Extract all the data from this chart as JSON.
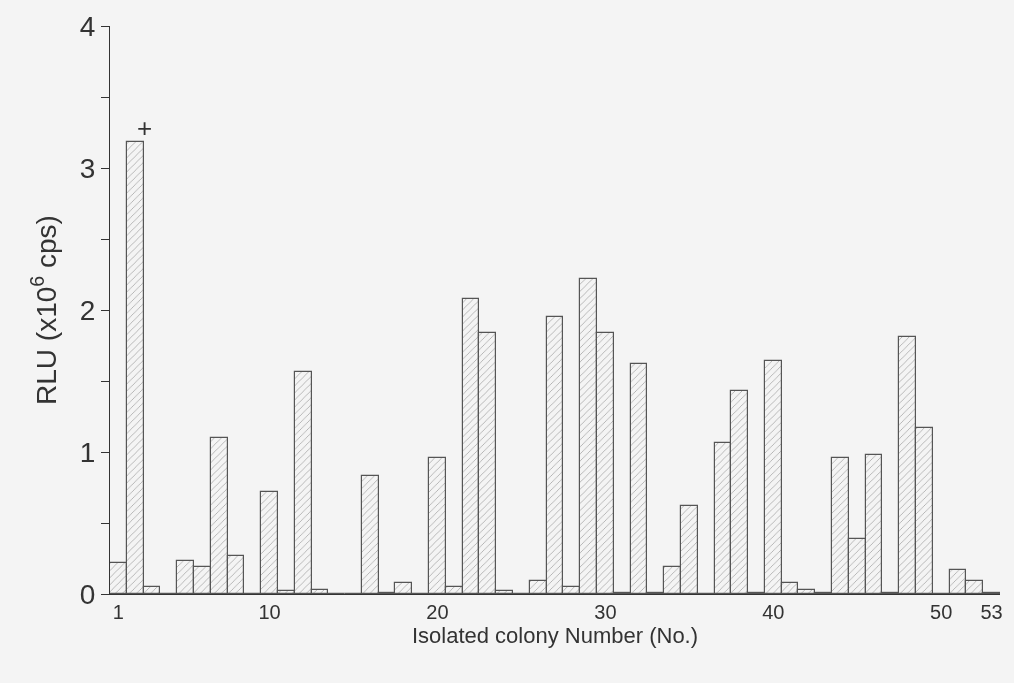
{
  "chart_data": {
    "type": "bar",
    "xlabel": "Isolated colony Number (No.)",
    "ylabel": "RLU (x10$^{6}$ cps)",
    "categories": [
      "1",
      null,
      null,
      null,
      null,
      null,
      null,
      null,
      null,
      "10",
      null,
      null,
      null,
      null,
      null,
      null,
      null,
      null,
      null,
      "20",
      null,
      null,
      null,
      null,
      null,
      null,
      null,
      null,
      null,
      "30",
      null,
      null,
      null,
      null,
      null,
      null,
      null,
      null,
      null,
      "40",
      null,
      null,
      null,
      null,
      null,
      null,
      null,
      null,
      null,
      "50",
      null,
      null,
      "53"
    ],
    "values": [
      0.22,
      3.18,
      0.05,
      0,
      0.23,
      0.19,
      1.1,
      0.27,
      0,
      0.72,
      0.02,
      1.56,
      0.03,
      0,
      0,
      0.83,
      0.01,
      0.08,
      0,
      0.96,
      0.05,
      2.08,
      1.84,
      0.02,
      0,
      0.09,
      1.95,
      0.05,
      2.22,
      1.84,
      0.01,
      1.62,
      0.01,
      0.19,
      0.62,
      0,
      1.06,
      1.43,
      0.01,
      1.64,
      0.08,
      0.03,
      0.01,
      0.96,
      0.39,
      0.98,
      0.01,
      1.81,
      1.17,
      0,
      0.17,
      0.09,
      0.01
    ],
    "color": "#555555",
    "ylim": [
      0,
      4
    ],
    "yticks": [
      0,
      {
        "value": 0.5,
        "label": null
      },
      1,
      {
        "value": 1.5,
        "label": null
      },
      2,
      {
        "value": 2.5,
        "label": null
      },
      3,
      {
        "value": 3.5,
        "label": null
      },
      4
    ],
    "annotations": [
      "+"
    ]
  }
}
